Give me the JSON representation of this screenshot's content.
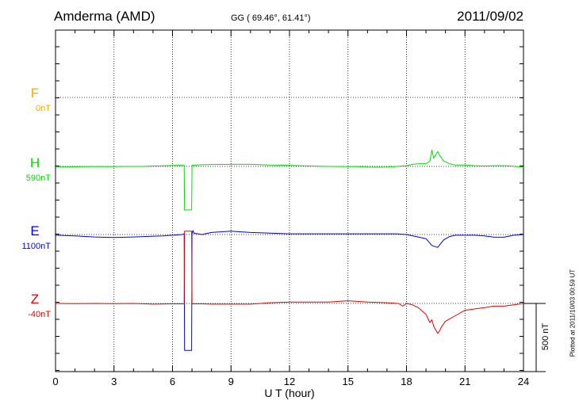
{
  "header": {
    "station": "Amderma (AMD)",
    "coords": "GG ( 69.46°,  61.41°)",
    "date": "2011/09/02"
  },
  "footer": {
    "plotted": "Plotted at 2011/10/03 00:59 UT"
  },
  "colors": {
    "F": "#ffa500",
    "H": "#00e000",
    "E": "#0000e6",
    "Z": "#e60000",
    "axis": "#000000"
  },
  "chart_data": {
    "type": "line",
    "xlabel": "U T (hour)",
    "xlim": [
      0,
      24
    ],
    "x_ticks": [
      0,
      3,
      6,
      9,
      12,
      15,
      18,
      21,
      24
    ],
    "scale_label": "500 nT",
    "grid": true,
    "series": [
      {
        "name": "F",
        "baseline_label": "0nT",
        "x": [],
        "y": []
      },
      {
        "name": "H",
        "baseline_label": "590nT",
        "x": [
          0,
          0.5,
          1,
          1.5,
          2,
          2.5,
          3,
          3.5,
          4,
          4.5,
          5,
          5.5,
          6.2,
          6.6,
          6.62,
          6.98,
          7.0,
          7.5,
          8,
          9,
          10,
          11,
          12,
          12.5,
          13,
          14,
          15,
          15.5,
          16,
          16.5,
          17,
          17.5,
          18,
          18.3,
          18.7,
          19,
          19.2,
          19.3,
          19.4,
          19.6,
          19.7,
          19.9,
          20.2,
          20.5,
          21,
          21.5,
          22,
          22.5,
          23,
          23.5,
          24
        ],
        "y": [
          -5,
          -4,
          -3,
          -2,
          -2,
          -1,
          -1,
          0,
          0,
          0,
          3,
          4,
          8,
          8,
          -320,
          -320,
          8,
          12,
          14,
          15,
          15,
          10,
          8,
          5,
          3,
          0,
          -2,
          -2,
          -5,
          -6,
          -5,
          0,
          5,
          15,
          20,
          20,
          40,
          120,
          60,
          110,
          80,
          40,
          20,
          10,
          10,
          5,
          3,
          5,
          5,
          2,
          -5
        ]
      },
      {
        "name": "E",
        "baseline_label": "1100nT",
        "x": [
          0,
          1,
          2,
          3,
          4,
          5,
          5.5,
          6,
          6.5,
          6.6,
          6.62,
          6.98,
          7.0,
          7.05,
          7.1,
          7.5,
          8,
          9,
          9.5,
          10,
          11,
          12,
          13,
          14,
          15,
          16,
          17,
          17.5,
          18,
          18.5,
          19,
          19.3,
          19.6,
          19.9,
          20.2,
          20.5,
          21,
          21.5,
          22,
          22.5,
          23,
          23.5,
          24
        ],
        "y": [
          -5,
          -10,
          -18,
          -22,
          -18,
          -12,
          -10,
          -5,
          0,
          5,
          -850,
          -850,
          5,
          30,
          10,
          0,
          15,
          25,
          20,
          15,
          10,
          5,
          5,
          5,
          5,
          5,
          5,
          5,
          0,
          -15,
          -30,
          -80,
          -95,
          -40,
          -15,
          -5,
          -5,
          -5,
          -10,
          -20,
          -20,
          -5,
          0
        ]
      },
      {
        "name": "Z",
        "baseline_label": "-40nT",
        "x": [
          0,
          1,
          2,
          3,
          4,
          5,
          6,
          6.6,
          6.62,
          6.98,
          7.0,
          7.5,
          8,
          9,
          10,
          11,
          12,
          13,
          14,
          15,
          16,
          17,
          17.6,
          17.8,
          18,
          18.3,
          18.6,
          19,
          19.2,
          19.3,
          19.4,
          19.6,
          19.7,
          19.8,
          20,
          20.5,
          21,
          22,
          22.5,
          23,
          23.5,
          24
        ],
        "y": [
          0,
          -2,
          0,
          -2,
          0,
          -5,
          -3,
          -3,
          530,
          530,
          -3,
          -3,
          -5,
          -5,
          -5,
          5,
          10,
          10,
          10,
          20,
          10,
          5,
          0,
          -20,
          0,
          -10,
          -30,
          -80,
          -140,
          -120,
          -170,
          -220,
          -200,
          -170,
          -130,
          -90,
          -50,
          -30,
          -20,
          -20,
          -10,
          0
        ]
      }
    ]
  }
}
